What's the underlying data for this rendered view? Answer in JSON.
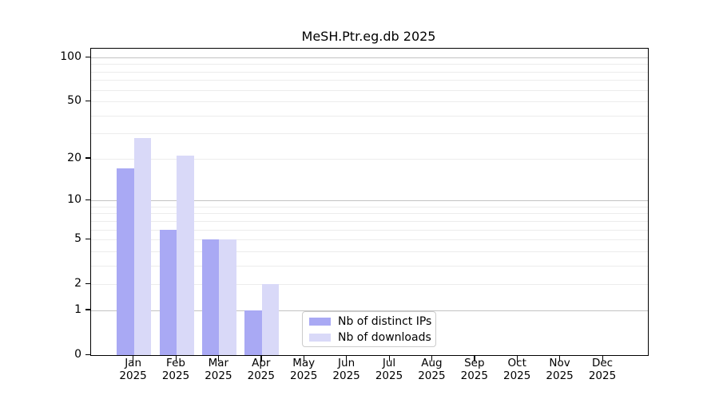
{
  "chart_data": {
    "type": "bar",
    "title": "MeSH.Ptr.eg.db 2025",
    "categories": [
      "Jan",
      "Feb",
      "Mar",
      "Apr",
      "May",
      "Jun",
      "Jul",
      "Aug",
      "Sep",
      "Oct",
      "Nov",
      "Dec"
    ],
    "category_year": "2025",
    "series": [
      {
        "name": "Nb of distinct IPs",
        "key": "distinct-ips",
        "color": "#a9a9f4",
        "values": [
          17,
          6,
          5,
          1,
          0,
          0,
          0,
          0,
          0,
          0,
          0,
          0
        ]
      },
      {
        "name": "Nb of downloads",
        "key": "downloads",
        "color": "#d9d9f8",
        "values": [
          28,
          21,
          5,
          2,
          0,
          0,
          0,
          0,
          0,
          0,
          0,
          0
        ]
      }
    ],
    "yscale": "log1p",
    "yticks": [
      0,
      1,
      2,
      5,
      10,
      20,
      50,
      100
    ],
    "ylim": [
      0,
      115
    ],
    "xlabel": "",
    "ylabel": "",
    "grid": "horizontal",
    "legend_position": "inside-bottom-center",
    "colors": {
      "grid_minor": "#ececec",
      "grid_major": "#c3c3c3",
      "axis": "#000000",
      "background": "#ffffff"
    }
  }
}
